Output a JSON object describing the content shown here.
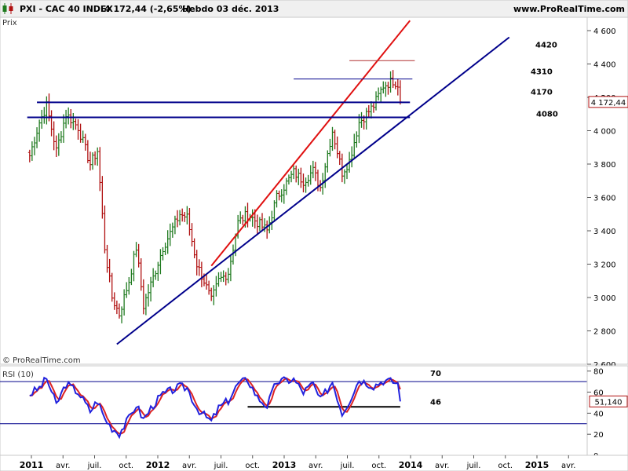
{
  "header": {
    "instrument": "PXI - CAC 40 INDEX",
    "last": "4 172,44 (-2,65%)",
    "period": "Hebdo 03 déc. 2013",
    "site": "www.ProRealTime.com"
  },
  "price_panel": {
    "label": "Prix",
    "watermark": "© ProRealTime.com",
    "last_label": "4 172,44"
  },
  "rsi_panel": {
    "label": "RSI (10)",
    "last_label": "51,140"
  },
  "colors": {
    "up": "#1f7a1f",
    "down": "#b01010",
    "support": "#00008b",
    "resistance_line": "#e01010",
    "thin_resistance": "#b03030",
    "rsi_line": "#2222dd",
    "rsi_signal": "#dd2222"
  },
  "chart_data": [
    {
      "type": "candlestick",
      "title": "PXI - CAC 40 INDEX",
      "ylabel": "Prix",
      "ylim": [
        2600,
        4680
      ],
      "y_ticks": [
        "2 600",
        "2 800",
        "3 000",
        "3 200",
        "3 400",
        "3 600",
        "3 800",
        "4 000",
        "4 200",
        "4 400",
        "4 600"
      ],
      "x_ticks": [
        {
          "label": "2011",
          "bold": true
        },
        {
          "label": "avr.",
          "bold": false
        },
        {
          "label": "juil.",
          "bold": false
        },
        {
          "label": "oct.",
          "bold": false
        },
        {
          "label": "2012",
          "bold": true
        },
        {
          "label": "avr.",
          "bold": false
        },
        {
          "label": "juil.",
          "bold": false
        },
        {
          "label": "oct.",
          "bold": false
        },
        {
          "label": "2013",
          "bold": true
        },
        {
          "label": "avr.",
          "bold": false
        },
        {
          "label": "juil.",
          "bold": false
        },
        {
          "label": "oct.",
          "bold": false
        },
        {
          "label": "2014",
          "bold": true
        },
        {
          "label": "avr.",
          "bold": false
        },
        {
          "label": "juil.",
          "bold": false
        },
        {
          "label": "oct.",
          "bold": false
        },
        {
          "label": "2015",
          "bold": true
        },
        {
          "label": "avr.",
          "bold": false
        }
      ],
      "levels": [
        {
          "label": "4420",
          "value": 4420
        },
        {
          "label": "4310",
          "value": 4310
        },
        {
          "label": "4170",
          "value": 4170
        },
        {
          "label": "4080",
          "value": 4080
        }
      ],
      "last_value": 4172.44,
      "keypoints": [
        [
          "2010-12-27",
          3850
        ],
        [
          "2011-01-24",
          4050
        ],
        [
          "2011-02-14",
          4150
        ],
        [
          "2011-03-14",
          3880
        ],
        [
          "2011-04-11",
          4100
        ],
        [
          "2011-05-16",
          4020
        ],
        [
          "2011-06-20",
          3800
        ],
        [
          "2011-07-11",
          3880
        ],
        [
          "2011-08-01",
          3300
        ],
        [
          "2011-08-22",
          3000
        ],
        [
          "2011-09-12",
          2900
        ],
        [
          "2011-10-10",
          3100
        ],
        [
          "2011-10-31",
          3300
        ],
        [
          "2011-11-21",
          2950
        ],
        [
          "2011-12-19",
          3120
        ],
        [
          "2012-01-16",
          3300
        ],
        [
          "2012-03-05",
          3500
        ],
        [
          "2012-03-26",
          3480
        ],
        [
          "2012-04-23",
          3200
        ],
        [
          "2012-05-14",
          3100
        ],
        [
          "2012-06-04",
          2980
        ],
        [
          "2012-06-25",
          3100
        ],
        [
          "2012-07-23",
          3150
        ],
        [
          "2012-08-20",
          3450
        ],
        [
          "2012-09-17",
          3500
        ],
        [
          "2012-10-15",
          3450
        ],
        [
          "2012-11-12",
          3400
        ],
        [
          "2012-12-10",
          3600
        ],
        [
          "2013-01-28",
          3750
        ],
        [
          "2013-02-25",
          3700
        ],
        [
          "2013-03-25",
          3760
        ],
        [
          "2013-04-15",
          3660
        ],
        [
          "2013-05-20",
          4000
        ],
        [
          "2013-06-17",
          3750
        ],
        [
          "2013-07-08",
          3820
        ],
        [
          "2013-08-05",
          4050
        ],
        [
          "2013-09-16",
          4150
        ],
        [
          "2013-10-14",
          4270
        ],
        [
          "2013-11-11",
          4300
        ],
        [
          "2013-11-25",
          4280
        ],
        [
          "2013-12-02",
          4172.44
        ]
      ],
      "trendlines": [
        {
          "name": "support",
          "from": [
            "2011-09-05",
            2720
          ],
          "to": [
            "2014-10-13",
            4560
          ],
          "color": "support"
        },
        {
          "name": "resistance",
          "from": [
            "2012-06-04",
            3190
          ],
          "to": [
            "2013-12-30",
            4660
          ],
          "color": "resistance_line"
        },
        {
          "name": "h1",
          "from": [
            "2010-12-20",
            4080
          ],
          "to": [
            "2013-12-30",
            4080
          ],
          "color": "support"
        },
        {
          "name": "h2",
          "from": [
            "2011-01-17",
            4170
          ],
          "to": [
            "2013-12-30",
            4170
          ],
          "color": "support"
        },
        {
          "name": "h3",
          "from": [
            "2013-01-28",
            4310
          ],
          "to": [
            "2014-01-06",
            4310
          ],
          "color": "support"
        },
        {
          "name": "h4",
          "from": [
            "2013-07-08",
            4420
          ],
          "to": [
            "2014-01-13",
            4420
          ],
          "color": "thin_resistance"
        }
      ]
    },
    {
      "type": "line",
      "title": "RSI (10)",
      "ylim": [
        0,
        85
      ],
      "y_ticks": [
        "0",
        "20",
        "40",
        "60",
        "80"
      ],
      "levels": [
        {
          "label": "70",
          "value": 70
        },
        {
          "label": "46",
          "value": 46
        },
        {
          "label": "",
          "value": 30
        }
      ],
      "last_value": 51.14,
      "keypoints": [
        [
          "2010-12-27",
          58
        ],
        [
          "2011-01-24",
          64
        ],
        [
          "2011-02-14",
          73
        ],
        [
          "2011-03-14",
          48
        ],
        [
          "2011-04-11",
          68
        ],
        [
          "2011-05-16",
          60
        ],
        [
          "2011-06-20",
          42
        ],
        [
          "2011-07-11",
          52
        ],
        [
          "2011-08-01",
          35
        ],
        [
          "2011-08-22",
          26
        ],
        [
          "2011-09-12",
          21
        ],
        [
          "2011-10-10",
          35
        ],
        [
          "2011-10-31",
          48
        ],
        [
          "2011-11-21",
          34
        ],
        [
          "2011-12-19",
          48
        ],
        [
          "2012-01-16",
          58
        ],
        [
          "2012-03-05",
          65
        ],
        [
          "2012-03-26",
          64
        ],
        [
          "2012-04-23",
          45
        ],
        [
          "2012-05-14",
          38
        ],
        [
          "2012-06-04",
          32
        ],
        [
          "2012-06-25",
          45
        ],
        [
          "2012-07-23",
          52
        ],
        [
          "2012-08-20",
          68
        ],
        [
          "2012-09-17",
          72
        ],
        [
          "2012-10-15",
          55
        ],
        [
          "2012-11-12",
          47
        ],
        [
          "2012-12-10",
          70
        ],
        [
          "2013-01-28",
          72
        ],
        [
          "2013-02-25",
          60
        ],
        [
          "2013-03-25",
          68
        ],
        [
          "2013-04-15",
          52
        ],
        [
          "2013-05-20",
          70
        ],
        [
          "2013-06-17",
          40
        ],
        [
          "2013-07-08",
          52
        ],
        [
          "2013-08-05",
          72
        ],
        [
          "2013-09-16",
          66
        ],
        [
          "2013-10-14",
          71
        ],
        [
          "2013-11-11",
          70
        ],
        [
          "2013-11-25",
          68
        ],
        [
          "2013-12-02",
          51.14
        ]
      ]
    }
  ]
}
